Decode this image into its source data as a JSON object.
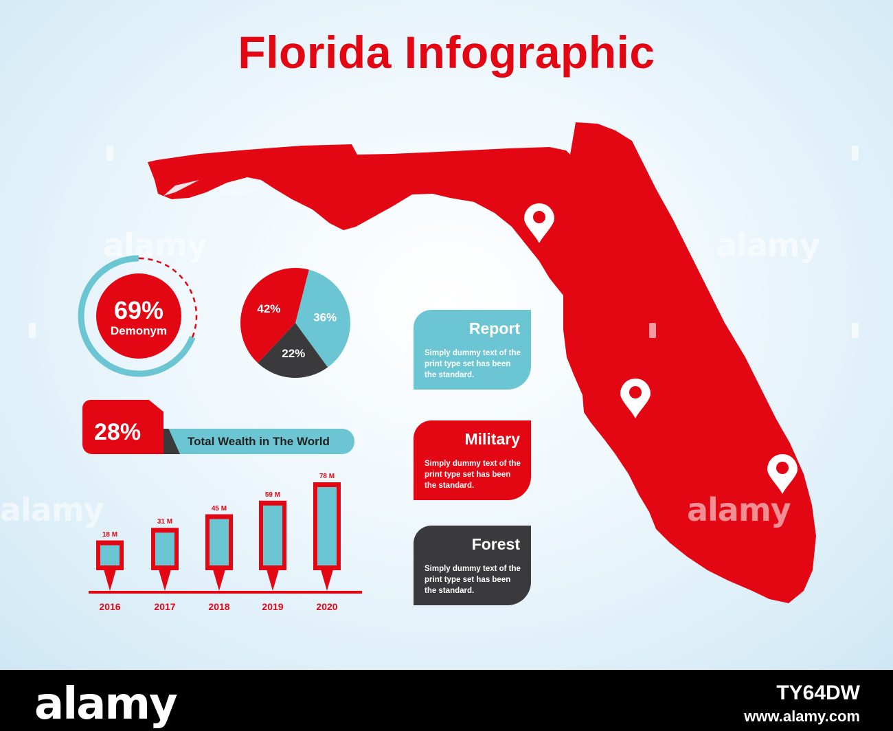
{
  "title": "Florida Infographic",
  "colors": {
    "red": "#e30613",
    "teal": "#6cc5d3",
    "dark": "#3a3a3c"
  },
  "demonym": {
    "value": "69%",
    "label": "Demonym",
    "percent": 69
  },
  "pie": {
    "slices": [
      {
        "label": "36%",
        "value": 36,
        "color": "#6cc5d3"
      },
      {
        "label": "22%",
        "value": 22,
        "color": "#3a3a3c"
      },
      {
        "label": "42%",
        "value": 42,
        "color": "#e30613"
      }
    ]
  },
  "wealth": {
    "value": "28%",
    "label": "Total Wealth in The World"
  },
  "bars": [
    {
      "year": "2016",
      "label": "18 M",
      "value": 18
    },
    {
      "year": "2017",
      "label": "31 M",
      "value": 31
    },
    {
      "year": "2018",
      "label": "45 M",
      "value": 45
    },
    {
      "year": "2019",
      "label": "59 M",
      "value": 59
    },
    {
      "year": "2020",
      "label": "78 M",
      "value": 78
    }
  ],
  "boxes": [
    {
      "title": "Report",
      "text": "Simply dummy text of the print type set has been the standard.",
      "color": "#6cc5d3"
    },
    {
      "title": "Military",
      "text": "Simply dummy text of the print type set has been the standard.",
      "color": "#e30613"
    },
    {
      "title": "Forest",
      "text": "Simply dummy text of the print type set has been the standard.",
      "color": "#3a3a3c"
    }
  ],
  "map": {
    "pins": 3,
    "icon": "map-pin-icon"
  },
  "watermark": "alamy",
  "footer": {
    "logo": "alamy",
    "image_id": "TY64DW",
    "url": "www.alamy.com"
  }
}
